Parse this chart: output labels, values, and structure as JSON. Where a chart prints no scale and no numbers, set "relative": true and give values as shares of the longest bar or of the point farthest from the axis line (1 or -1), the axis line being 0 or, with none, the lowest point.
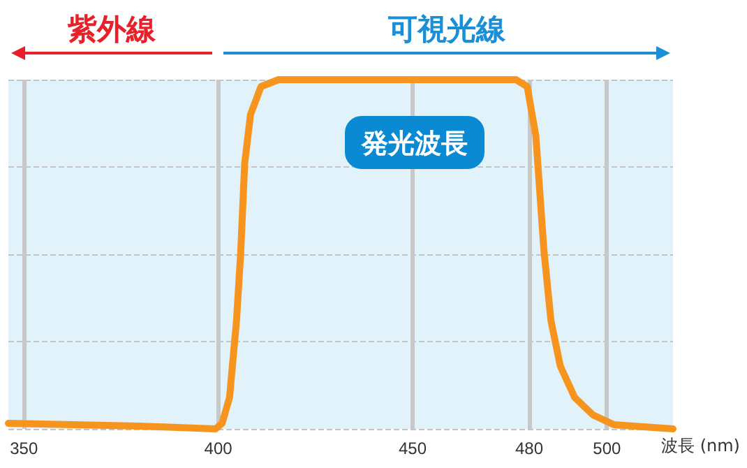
{
  "chart_data": {
    "type": "line",
    "relative": true,
    "xlabel": "波長 (nm)",
    "x": [
      346,
      379.5,
      399.3,
      401,
      402.9,
      404.7,
      405.8,
      406.8,
      408.3,
      411,
      415.5,
      476.6,
      479.5,
      481.7,
      483.8,
      485.6,
      488,
      491.7,
      496.4,
      501.8,
      517
    ],
    "series": [
      {
        "color": "#f7941d",
        "values": [
          0.016,
          0.008,
          0,
          0.016,
          0.09,
          0.31,
          0.51,
          0.76,
          0.9,
          0.98,
          1,
          1,
          0.98,
          0.84,
          0.51,
          0.31,
          0.18,
          0.09,
          0.04,
          0.012,
          0
        ]
      }
    ],
    "xlim": [
      346,
      517
    ],
    "xticks": [
      350,
      400,
      450,
      480,
      500
    ],
    "grid": true,
    "marker": "none",
    "line_style": "solid",
    "annotations": [
      "発光波長",
      "紫外線",
      "可視光線"
    ]
  }
}
